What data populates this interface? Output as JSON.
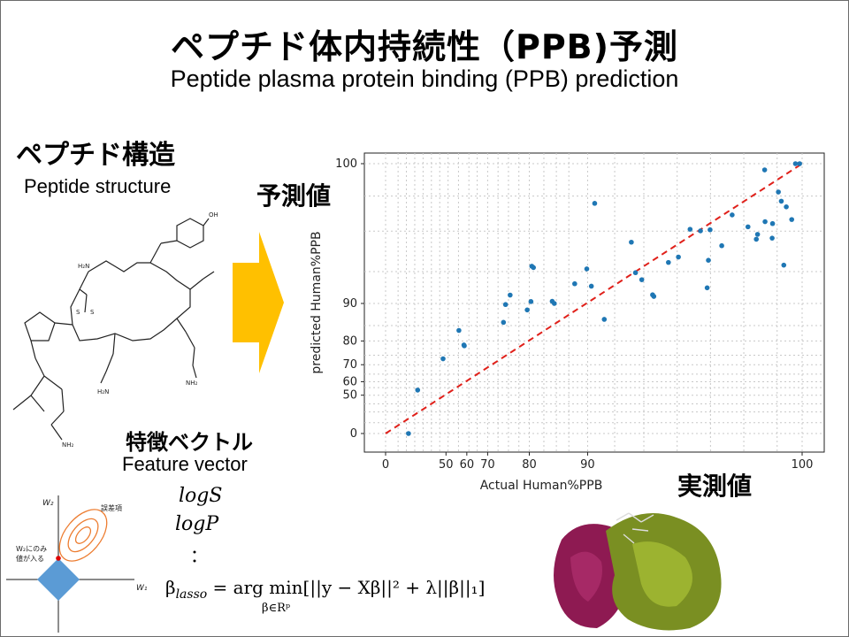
{
  "header": {
    "title_jp": "ペプチド体内持続性（PPB)予測",
    "title_en": "Peptide plasma protein binding (PPB) prediction"
  },
  "structure": {
    "title_jp": "ペプチド構造",
    "title_en": "Peptide structure"
  },
  "features": {
    "title_jp": "特徴ベクトル",
    "title_en": "Feature vector",
    "items": [
      "logS",
      "logP",
      "："
    ]
  },
  "lasso": {
    "beta": "β",
    "sub": "lasso",
    "eq": "= arg min[||y − Xβ||² + λ||β||₁]",
    "under": "β∈Rᵖ"
  },
  "lasso_diagram": {
    "w2_label": "W₂",
    "w1_label": "W₁",
    "error_label": "誤差項",
    "only_label_1": "W₂にのみ",
    "only_label_2": "値が入る",
    "colors": {
      "diamond": "#5b9bd5",
      "contour": "#ed7d31",
      "point": "#e00000"
    }
  },
  "arrow": {
    "color": "#ffc000"
  },
  "predicted_label": "予測値",
  "actual_label": "実測値",
  "chart_data": {
    "type": "scatter",
    "xlabel": "Actual Human%PPB",
    "ylabel": "predicted Human%PPB",
    "x_ticks": [
      "0",
      "50",
      "60",
      "70",
      "80",
      "90",
      "100"
    ],
    "y_ticks": [
      "0",
      "50",
      "60",
      "70",
      "80",
      "90",
      "100"
    ],
    "grid": true,
    "scale": "non-linear (transformed)",
    "point_color": "#1f77b4",
    "identity_line_color": "#e0201a",
    "points_xy_transformed": [
      [
        5.5,
        0.0
      ],
      [
        7.7,
        16.1
      ],
      [
        13.8,
        27.7
      ],
      [
        17.6,
        38.2
      ],
      [
        18.8,
        32.8
      ],
      [
        18.9,
        32.5
      ],
      [
        28.3,
        41.2
      ],
      [
        28.8,
        47.8
      ],
      [
        29.9,
        51.3
      ],
      [
        34.0,
        45.8
      ],
      [
        35.1,
        62.0
      ],
      [
        35.5,
        61.5
      ],
      [
        34.9,
        48.9
      ],
      [
        40.0,
        49.0
      ],
      [
        40.5,
        48.2
      ],
      [
        45.4,
        55.5
      ],
      [
        48.3,
        61.0
      ],
      [
        49.4,
        54.6
      ],
      [
        50.2,
        85.3
      ],
      [
        52.5,
        42.3
      ],
      [
        59.0,
        70.9
      ],
      [
        60.0,
        59.6
      ],
      [
        61.5,
        57.0
      ],
      [
        64.1,
        51.4
      ],
      [
        64.4,
        50.8
      ],
      [
        67.9,
        63.4
      ],
      [
        70.3,
        65.4
      ],
      [
        73.1,
        75.7
      ],
      [
        75.6,
        75.1
      ],
      [
        77.5,
        64.2
      ],
      [
        77.9,
        75.5
      ],
      [
        77.2,
        54.0
      ],
      [
        80.7,
        69.6
      ],
      [
        83.2,
        81.0
      ],
      [
        87.0,
        76.6
      ],
      [
        89.0,
        72.0
      ],
      [
        89.3,
        73.8
      ],
      [
        92.8,
        72.4
      ],
      [
        91.1,
        78.5
      ],
      [
        91.0,
        97.7
      ],
      [
        92.9,
        77.8
      ],
      [
        94.3,
        89.5
      ],
      [
        95.0,
        86.1
      ],
      [
        96.2,
        84.0
      ],
      [
        97.5,
        79.3
      ],
      [
        95.6,
        62.4
      ],
      [
        98.4,
        100.0
      ],
      [
        99.4,
        100.0
      ]
    ],
    "identity_line": [
      [
        0,
        0
      ],
      [
        100,
        100
      ]
    ]
  }
}
